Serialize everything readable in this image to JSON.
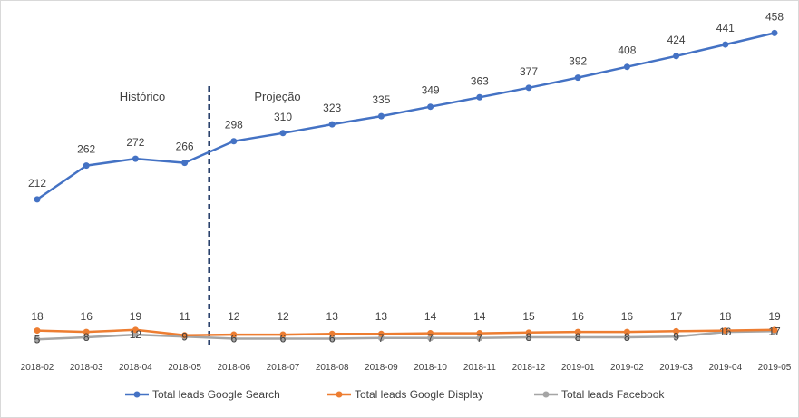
{
  "chart_data": {
    "type": "line",
    "title": "",
    "xlabel": "",
    "ylabel": "",
    "ylim": [
      0,
      480
    ],
    "grid": false,
    "legend_position": "bottom",
    "categories": [
      "2018-02",
      "2018-03",
      "2018-04",
      "2018-05",
      "2018-06",
      "2018-07",
      "2018-08",
      "2018-09",
      "2018-10",
      "2018-11",
      "2018-12",
      "2019-01",
      "2019-02",
      "2019-03",
      "2019-04",
      "2019-05"
    ],
    "series": [
      {
        "name": "Total leads Google Search",
        "color": "#4472C4",
        "values": [
          212,
          262,
          272,
          266,
          298,
          310,
          323,
          335,
          349,
          363,
          377,
          392,
          408,
          424,
          441,
          458
        ],
        "label_position": "above"
      },
      {
        "name": "Total leads Google Display",
        "color": "#ED7D31",
        "values": [
          18,
          16,
          19,
          11,
          12,
          12,
          13,
          13,
          14,
          14,
          15,
          16,
          16,
          17,
          18,
          19
        ],
        "label_position": "above"
      },
      {
        "name": "Total leads Facebook",
        "color": "#A5A5A5",
        "values": [
          5,
          8,
          12,
          9,
          6,
          6,
          6,
          7,
          7,
          7,
          8,
          8,
          8,
          9,
          16,
          17
        ],
        "label_position": "center"
      }
    ],
    "annotations": {
      "historical_label": "Histórico",
      "projection_label": "Projeção",
      "divider_between": [
        "2018-05",
        "2018-06"
      ]
    }
  }
}
